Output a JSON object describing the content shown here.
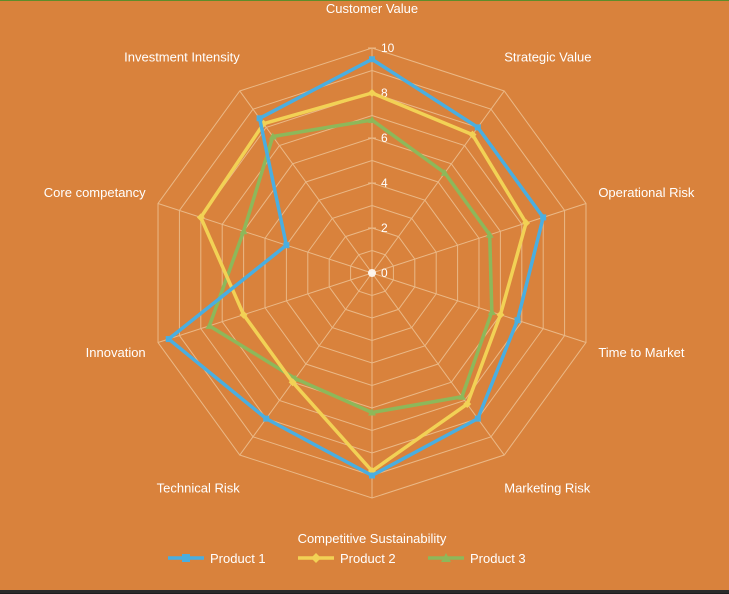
{
  "chart_data": {
    "type": "radar",
    "axes": [
      "Customer Value",
      "Strategic Value",
      "Operational Risk",
      "Time to Market",
      "Marketing Risk",
      "Competitive Sustainability",
      "Technical Risk",
      "Innovation",
      "Core competancy",
      "Investment Intensity"
    ],
    "rlim": [
      0,
      10
    ],
    "ticks": [
      0,
      2,
      4,
      6,
      8,
      10
    ],
    "grid": true,
    "legend_position": "bottom",
    "series": [
      {
        "name": "Product 1",
        "color": "#4aaee0",
        "marker": "square",
        "values": [
          9.5,
          8,
          8,
          6.8,
          8,
          9,
          8,
          9.5,
          4,
          8.5
        ]
      },
      {
        "name": "Product 2",
        "color": "#f2d155",
        "marker": "diamond",
        "values": [
          8,
          7.6,
          7.2,
          6,
          7.2,
          8.8,
          6,
          6,
          8,
          8.2
        ]
      },
      {
        "name": "Product 3",
        "color": "#8db85a",
        "marker": "triangle",
        "values": [
          6.8,
          5.5,
          5.5,
          5.6,
          6.8,
          6.2,
          5.8,
          7.6,
          6,
          7.5
        ]
      }
    ],
    "colors": {
      "background": "#d9823c",
      "grid": "#eab886",
      "text": "#ffffff"
    }
  }
}
